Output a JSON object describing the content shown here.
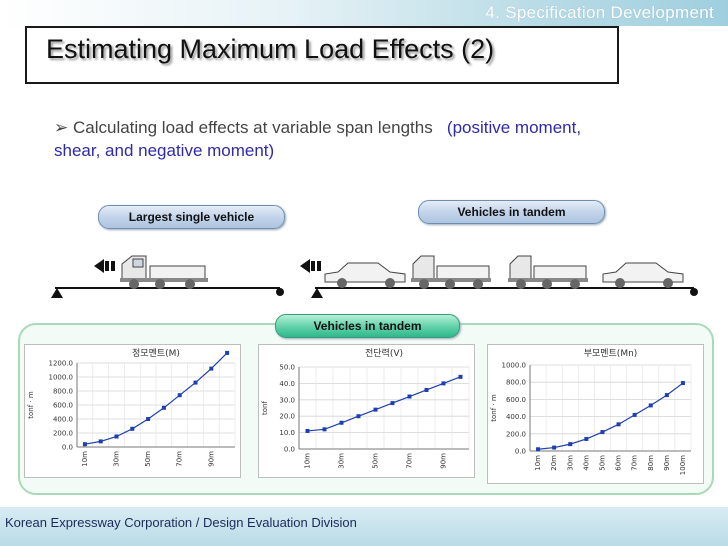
{
  "header": {
    "section": "4. Specification  Development",
    "title": "Estimating Maximum Load Effects (2)"
  },
  "bullet": {
    "marker": "➢",
    "text_plain": "Calculating load effects at variable span lengths",
    "text_emphasis": "(positive moment, shear, and negative moment)"
  },
  "diagram": {
    "single_label": "Largest single vehicle",
    "tandem_label": "Vehicles in tandem",
    "charts_label": "Vehicles in tandem",
    "colors": {
      "pill_blue": "#b8cce6",
      "pill_green": "#3cc495",
      "series": "#1f3fb0",
      "panel_border": "#a8d9b8"
    }
  },
  "footer": {
    "text": "Korean Expressway Corporation / Design Evaluation Division"
  },
  "chart_data": [
    {
      "type": "line",
      "title": "정모멘트(M)",
      "ylabel": "tonf · m",
      "categories": [
        "10m",
        "20m",
        "30m",
        "40m",
        "50m",
        "60m",
        "70m",
        "80m",
        "90m",
        "100m"
      ],
      "x_tick_labels": [
        "10m",
        "30m",
        "50m",
        "70m",
        "90m"
      ],
      "values": [
        40,
        80,
        150,
        260,
        400,
        560,
        740,
        920,
        1120,
        1360
      ],
      "ylim": [
        0,
        1200
      ],
      "yticks": [
        "0.0",
        "200.0",
        "400.0",
        "600.0",
        "800.0",
        "1000.0",
        "1200.0"
      ],
      "grid": true
    },
    {
      "type": "line",
      "title": "전단력(V)",
      "ylabel": "tonf",
      "categories": [
        "10m",
        "20m",
        "30m",
        "40m",
        "50m",
        "60m",
        "70m",
        "80m",
        "90m",
        "100m"
      ],
      "x_tick_labels": [
        "10m",
        "30m",
        "50m",
        "70m",
        "90m"
      ],
      "values": [
        11,
        12,
        16,
        20,
        24,
        28,
        32,
        36,
        40,
        44
      ],
      "ylim": [
        0,
        50
      ],
      "yticks": [
        "0.0",
        "10.0",
        "20.0",
        "30.0",
        "40.0",
        "50.0"
      ],
      "grid": true
    },
    {
      "type": "line",
      "title": "부모멘트(Mn)",
      "ylabel": "tonf · m",
      "categories": [
        "10m",
        "20m",
        "30m",
        "40m",
        "50m",
        "60m",
        "70m",
        "80m",
        "90m",
        "100m"
      ],
      "x_tick_labels": [
        "10m",
        "20m",
        "30m",
        "40m",
        "50m",
        "60m",
        "70m",
        "80m",
        "90m",
        "100m"
      ],
      "values": [
        20,
        40,
        80,
        140,
        220,
        310,
        420,
        530,
        650,
        790
      ],
      "ylim": [
        0,
        1000
      ],
      "yticks": [
        "0.0",
        "200.0",
        "400.0",
        "600.0",
        "800.0",
        "1000.0"
      ],
      "grid": true
    }
  ]
}
